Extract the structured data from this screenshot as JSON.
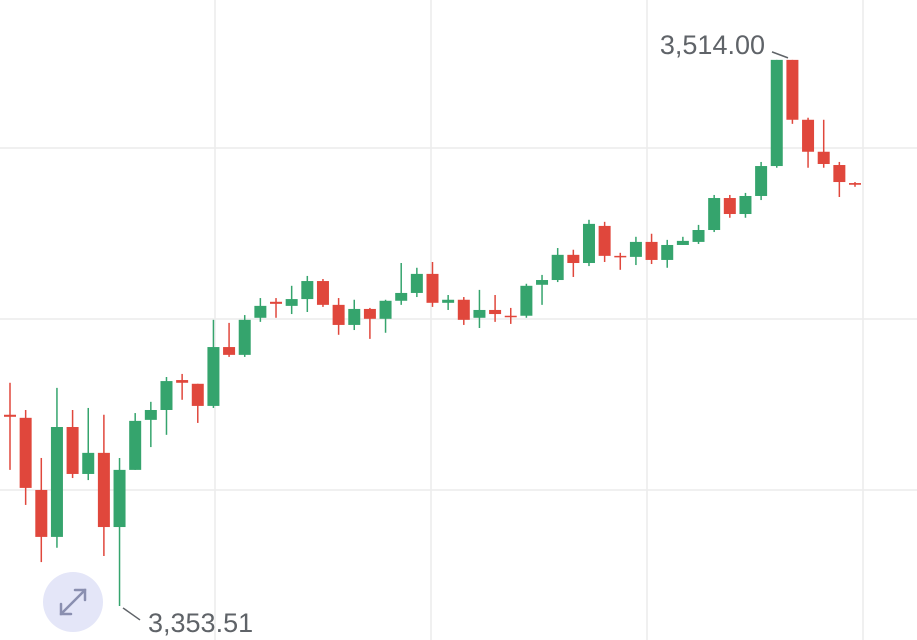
{
  "chart_data": {
    "type": "candlestick",
    "open": [
      3409.7,
      3408.8,
      3387.6,
      3373.8,
      3406.1,
      3392.3,
      3398.5,
      3376.7,
      3393.5,
      3408.2,
      3411.1,
      3419.9,
      3418.8,
      3412.3,
      3429.6,
      3427.3,
      3438.2,
      3442.9,
      3441.7,
      3443.7,
      3449.0,
      3442.0,
      3436.1,
      3440.8,
      3437.9,
      3443.2,
      3445.5,
      3451.1,
      3442.6,
      3443.5,
      3438.2,
      3440.5,
      3438.8,
      3438.8,
      3447.9,
      3449.3,
      3456.7,
      3454.3,
      3465.2,
      3456.4,
      3456.1,
      3460.5,
      3455.2,
      3459.6,
      3460.5,
      3464.0,
      3473.4,
      3468.7,
      3474.0,
      3482.8,
      3514.0,
      3496.4,
      3487.0,
      3483.1,
      3477.8
    ],
    "high": [
      3419.1,
      3411.1,
      3397.0,
      3417.6,
      3411.1,
      3411.7,
      3409.7,
      3397.0,
      3410.2,
      3413.5,
      3420.8,
      3421.7,
      3418.8,
      3437.6,
      3436.7,
      3439.0,
      3444.0,
      3444.0,
      3447.6,
      3450.5,
      3449.6,
      3444.0,
      3443.5,
      3441.1,
      3443.5,
      3454.3,
      3452.9,
      3454.6,
      3444.9,
      3444.3,
      3446.4,
      3444.9,
      3441.1,
      3448.2,
      3450.8,
      3458.7,
      3458.2,
      3467.0,
      3466.4,
      3457.3,
      3462.0,
      3462.9,
      3461.1,
      3462.0,
      3465.5,
      3474.3,
      3474.3,
      3474.9,
      3484.0,
      3514.0,
      3514.0,
      3497.0,
      3496.4,
      3484.0,
      3478.1
    ],
    "low": [
      3393.5,
      3383.2,
      3366.4,
      3370.6,
      3391.1,
      3390.5,
      3368.2,
      3353.51,
      3393.5,
      3400.2,
      3403.8,
      3414.1,
      3407.3,
      3411.7,
      3426.7,
      3426.7,
      3437.0,
      3438.2,
      3439.3,
      3439.9,
      3441.4,
      3433.2,
      3434.6,
      3432.0,
      3433.8,
      3442.0,
      3444.3,
      3441.4,
      3440.5,
      3436.1,
      3435.2,
      3437.0,
      3436.4,
      3438.2,
      3442.0,
      3448.7,
      3450.2,
      3453.4,
      3454.6,
      3452.3,
      3453.7,
      3454.0,
      3452.9,
      3459.6,
      3459.9,
      3463.4,
      3467.6,
      3467.6,
      3472.8,
      3482.3,
      3495.2,
      3482.3,
      3482.3,
      3473.7,
      3476.7
    ],
    "close": [
      3409.1,
      3388.2,
      3373.8,
      3406.1,
      3392.3,
      3398.5,
      3376.7,
      3393.5,
      3407.9,
      3411.1,
      3419.6,
      3419.1,
      3412.3,
      3429.6,
      3427.3,
      3437.6,
      3441.7,
      3442.3,
      3443.7,
      3449.0,
      3442.0,
      3436.1,
      3440.8,
      3437.9,
      3443.2,
      3445.5,
      3451.1,
      3442.6,
      3443.5,
      3437.6,
      3440.5,
      3439.3,
      3438.5,
      3447.6,
      3449.3,
      3456.7,
      3454.3,
      3465.8,
      3456.4,
      3456.1,
      3460.5,
      3455.2,
      3459.6,
      3460.8,
      3464.0,
      3473.4,
      3468.7,
      3474.0,
      3482.8,
      3514.0,
      3496.4,
      3487.0,
      3483.4,
      3478.1,
      3477.3
    ],
    "up_color": "#35a46d",
    "down_color": "#e0473c",
    "ylim": [
      3343.5,
      3531.6
    ],
    "annotations": [
      {
        "value": 3514.0,
        "label": "3,514.00"
      },
      {
        "value": 3353.51,
        "label": "3,353.51"
      }
    ]
  }
}
